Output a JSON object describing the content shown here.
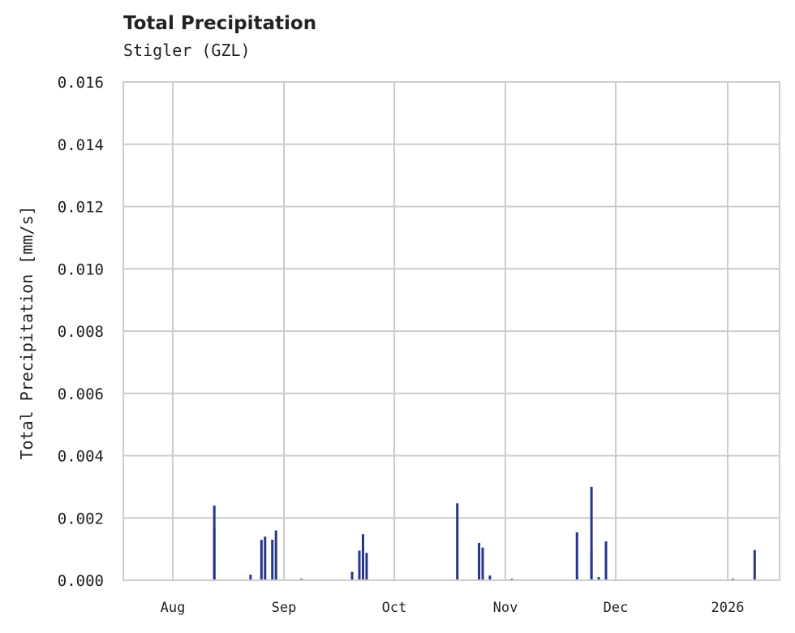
{
  "header": {
    "title": "Total Precipitation",
    "subtitle": "Stigler (GZL)"
  },
  "chart_data": {
    "type": "area",
    "title": "Total Precipitation",
    "subtitle": "Stigler (GZL)",
    "xlabel": "",
    "ylabel": "Total Precipitation [mm/s]",
    "ylim": [
      0,
      0.016
    ],
    "yticks": [
      "0.000",
      "0.002",
      "0.004",
      "0.006",
      "0.008",
      "0.010",
      "0.012",
      "0.014",
      "0.016"
    ],
    "xticks": [
      "Aug",
      "Sep",
      "Oct",
      "Nov",
      "Dec",
      "2026"
    ],
    "grid": true,
    "legend": null,
    "color": "#26348f",
    "series": [
      {
        "name": "Total Precipitation",
        "points": [
          {
            "date": "2025-08-12",
            "value": 0.00167
          },
          {
            "date": "2025-08-12",
            "value": 0.0024
          },
          {
            "date": "2025-08-22",
            "value": 0.00018
          },
          {
            "date": "2025-08-25",
            "value": 0.0013
          },
          {
            "date": "2025-08-26",
            "value": 0.0014
          },
          {
            "date": "2025-08-28",
            "value": 0.0013
          },
          {
            "date": "2025-08-29",
            "value": 0.0016
          },
          {
            "date": "2025-09-05",
            "value": 5e-05
          },
          {
            "date": "2025-09-19",
            "value": 0.00027
          },
          {
            "date": "2025-09-21",
            "value": 0.00095
          },
          {
            "date": "2025-09-22",
            "value": 0.00148
          },
          {
            "date": "2025-09-23",
            "value": 0.00088
          },
          {
            "date": "2025-10-18",
            "value": 0.00247
          },
          {
            "date": "2025-10-24",
            "value": 0.0012
          },
          {
            "date": "2025-10-25",
            "value": 0.00105
          },
          {
            "date": "2025-10-27",
            "value": 0.00015
          },
          {
            "date": "2025-11-02",
            "value": 5e-05
          },
          {
            "date": "2025-11-20",
            "value": 0.00154
          },
          {
            "date": "2025-11-24",
            "value": 0.003
          },
          {
            "date": "2025-11-24",
            "value": 0.00097
          },
          {
            "date": "2025-11-26",
            "value": 0.0001
          },
          {
            "date": "2025-11-28",
            "value": 0.00125
          },
          {
            "date": "2026-01-02",
            "value": 5e-05
          },
          {
            "date": "2026-01-08",
            "value": 0.00097
          }
        ]
      }
    ]
  }
}
